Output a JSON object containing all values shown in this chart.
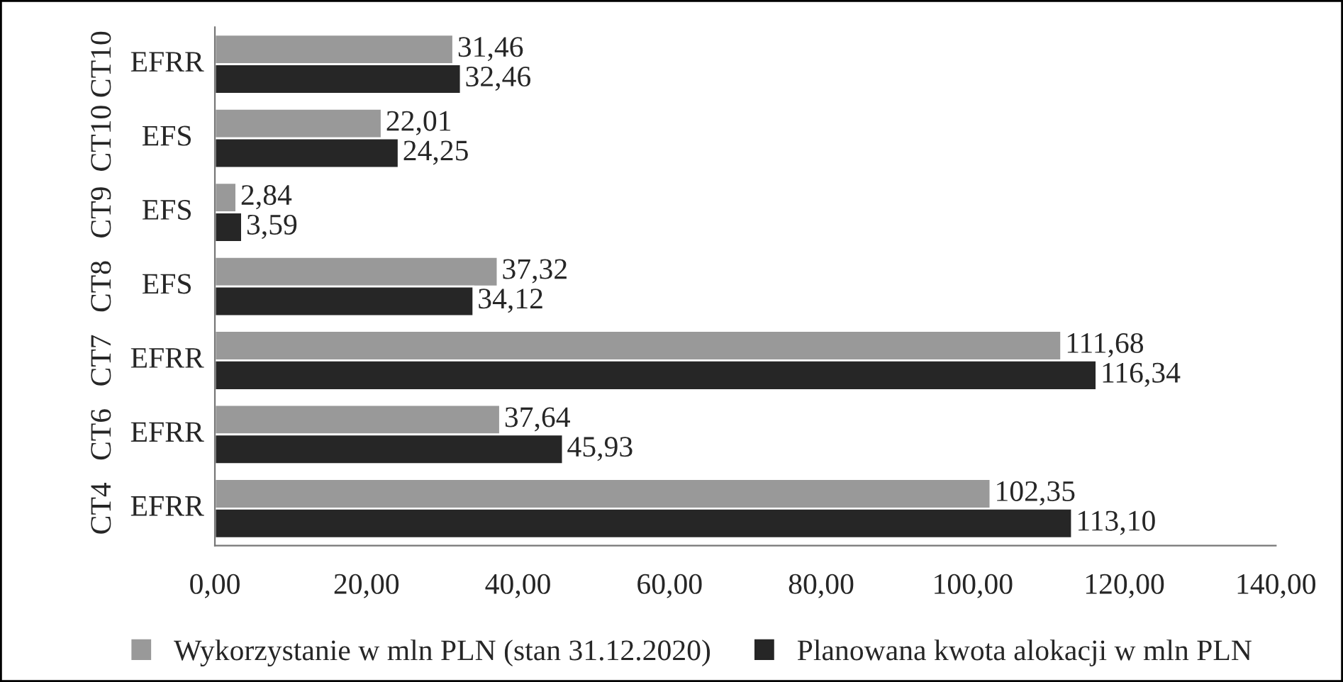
{
  "chart_data": {
    "type": "bar",
    "orientation": "horizontal",
    "categories": [
      "CT10 EFRR",
      "CT10 EFS",
      "CT9 EFS",
      "CT8 EFS",
      "CT7 EFRR",
      "CT6 EFRR",
      "CT4 EFRR"
    ],
    "series": [
      {
        "name": "Wykorzystanie w mln PLN (stan 31.12.2020)",
        "color": "#999999",
        "values": [
          31.46,
          22.01,
          2.84,
          37.32,
          111.68,
          37.64,
          102.35
        ],
        "value_labels": [
          "31,46",
          "22,01",
          "2,84",
          "37,32",
          "111,68",
          "37,64",
          "102,35"
        ]
      },
      {
        "name": "Planowana kwota alokacji w mln PLN",
        "color": "#262626",
        "values": [
          32.46,
          24.25,
          3.59,
          34.12,
          116.34,
          45.93,
          113.1
        ],
        "value_labels": [
          "32,46",
          "24,25",
          "3,59",
          "34,12",
          "116,34",
          "45,93",
          "113,10"
        ]
      }
    ],
    "xlim": [
      0,
      140
    ],
    "xticks": [
      {
        "value": 0,
        "label": "0,00"
      },
      {
        "value": 20,
        "label": "20,00"
      },
      {
        "value": 40,
        "label": "40,00"
      },
      {
        "value": 60,
        "label": "60,00"
      },
      {
        "value": 80,
        "label": "80,00"
      },
      {
        "value": 100,
        "label": "100,00"
      },
      {
        "value": 120,
        "label": "120,00"
      },
      {
        "value": 140,
        "label": "140,00"
      }
    ],
    "grid": false,
    "legend": "bottom"
  }
}
